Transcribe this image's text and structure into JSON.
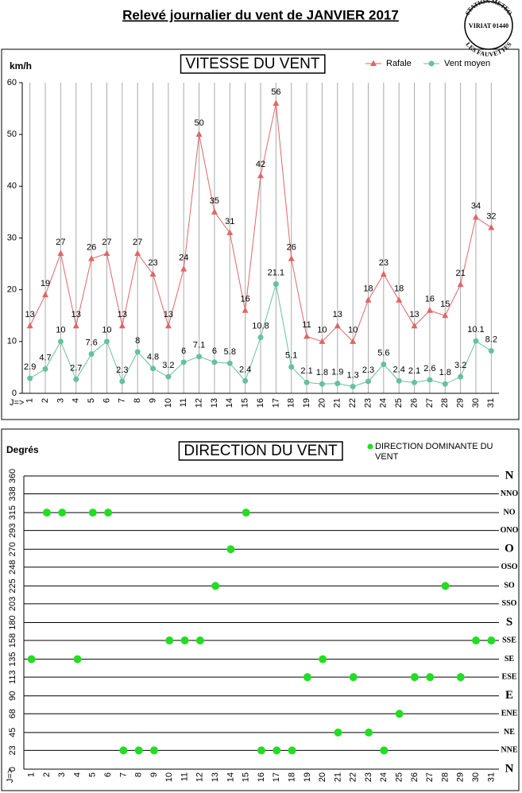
{
  "header": {
    "title": "Relevé journalier du vent de JANVIER 2017",
    "stamp": [
      "STATION METEO",
      "VIRIAT 01440",
      "LES FAUVETTES"
    ]
  },
  "chart_data": [
    {
      "type": "line",
      "title": "VITESSE DU VENT",
      "y_label": "km/h",
      "x_label": "J=>",
      "categories": [
        "1",
        "2",
        "3",
        "4",
        "5",
        "6",
        "7",
        "8",
        "9",
        "10",
        "11",
        "12",
        "13",
        "14",
        "15",
        "16",
        "17",
        "18",
        "19",
        "20",
        "21",
        "22",
        "23",
        "24",
        "25",
        "26",
        "27",
        "28",
        "29",
        "30",
        "31"
      ],
      "series": [
        {
          "name": "Rafale",
          "color": "#e06666",
          "marker": "triangle",
          "values": [
            13,
            19,
            27,
            13,
            26,
            27,
            13,
            27,
            23,
            13,
            24,
            50,
            35,
            31,
            16,
            42,
            56,
            26,
            11,
            10,
            13,
            10,
            18,
            23,
            18,
            13,
            16,
            15,
            21,
            34,
            32
          ]
        },
        {
          "name": "Vent moyen",
          "color": "#66c29a",
          "marker": "circle",
          "values": [
            2.9,
            4.7,
            10,
            2.7,
            7.6,
            10,
            2.3,
            8,
            4.8,
            3.2,
            6,
            7.1,
            6,
            5.8,
            2.4,
            10.8,
            21.1,
            5.1,
            2.1,
            1.8,
            1.9,
            1.3,
            2.3,
            5.6,
            2.4,
            2.1,
            2.6,
            1.8,
            3.2,
            10.1,
            8.2
          ]
        }
      ],
      "ylim": [
        0,
        60
      ],
      "yticks": [
        0,
        10,
        20,
        30,
        40,
        50,
        60
      ],
      "grid": "x",
      "legend": "top-right"
    },
    {
      "type": "scatter",
      "title": "DIRECTION DU VENT",
      "y_label": "Degrés",
      "x_label": "J=>",
      "categories": [
        "1",
        "2",
        "3",
        "4",
        "5",
        "6",
        "7",
        "8",
        "9",
        "10",
        "11",
        "12",
        "13",
        "14",
        "15",
        "16",
        "17",
        "18",
        "19",
        "20",
        "21",
        "22",
        "23",
        "24",
        "25",
        "26",
        "27",
        "28",
        "29",
        "30",
        "31"
      ],
      "series": [
        {
          "name": "DIRECTION DOMINANTE DU VENT",
          "color": "#22dd22",
          "values": [
            135,
            315,
            315,
            135,
            315,
            315,
            23,
            23,
            23,
            158,
            158,
            158,
            225,
            270,
            315,
            23,
            23,
            23,
            113,
            135,
            45,
            113,
            45,
            23,
            68,
            113,
            113,
            225,
            113,
            158,
            158
          ]
        }
      ],
      "ylim": [
        0,
        360
      ],
      "yticks": [
        0,
        23,
        45,
        68,
        90,
        113,
        135,
        158,
        180,
        203,
        225,
        248,
        270,
        293,
        315,
        338,
        360
      ],
      "direction_labels": [
        "N",
        "NNE",
        "NE",
        "ENE",
        "E",
        "ESE",
        "SE",
        "SSE",
        "S",
        "SSO",
        "SO",
        "OSO",
        "O",
        "ONO",
        "NO",
        "NNO",
        "N"
      ],
      "grid": "y",
      "legend": "top-right"
    }
  ]
}
